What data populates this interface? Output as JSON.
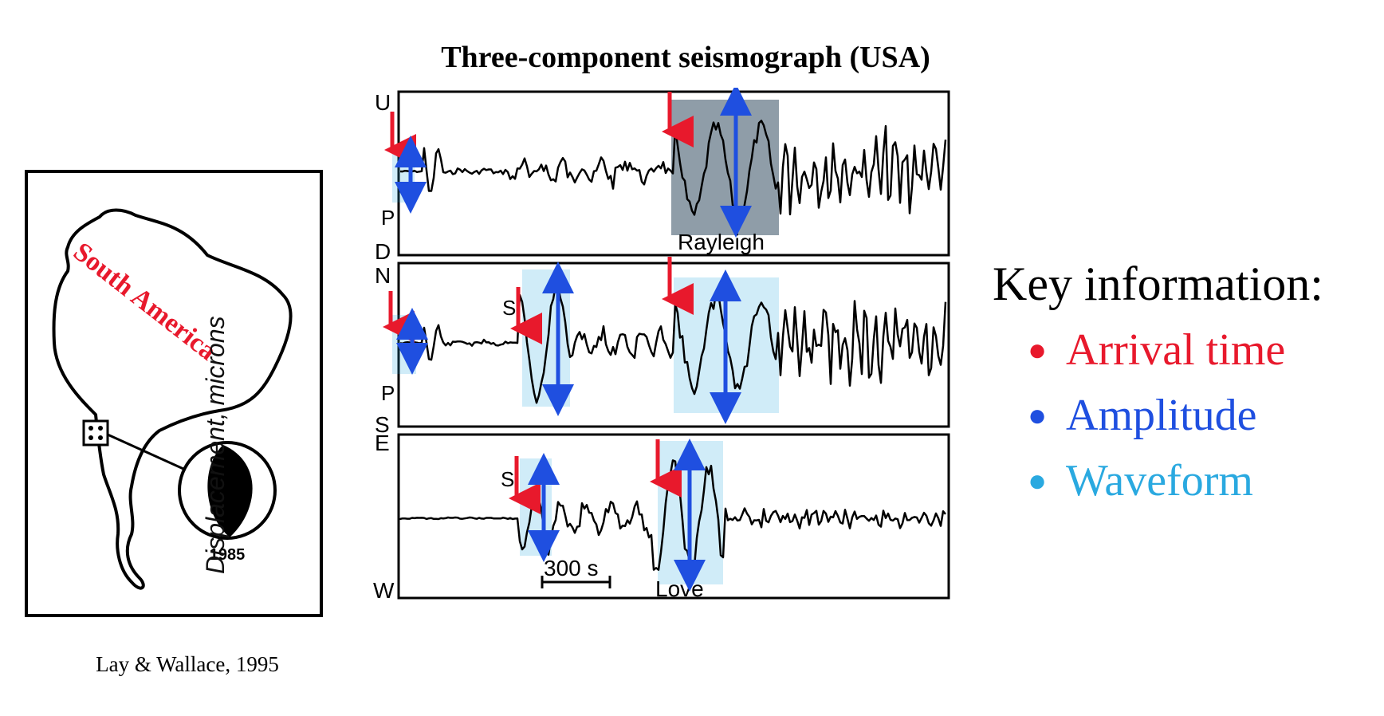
{
  "title": "Three-component seismograph (USA)",
  "credit": "Lay & Wallace, 1995",
  "map": {
    "region_label": "South America",
    "region_label_color": "#e8192c",
    "year_label": "1985"
  },
  "seismogram": {
    "y_axis_label": "Displacement, microns",
    "panels": [
      {
        "top_label": "U",
        "bottom_label": "D",
        "phase_labels": [
          "P",
          "Rayleigh"
        ]
      },
      {
        "top_label": "N",
        "bottom_label": "S",
        "phase_labels": [
          "P",
          "S"
        ]
      },
      {
        "top_label": "E",
        "bottom_label": "W",
        "phase_labels": [
          "S",
          "Love"
        ]
      }
    ],
    "scale_bar_label": "300 s"
  },
  "key": {
    "heading": "Key information:",
    "items": [
      {
        "label": "Arrival time",
        "color": "#e8192c",
        "icon": "red-arrow"
      },
      {
        "label": "Amplitude",
        "color": "#1f4fe0",
        "icon": "blue-double-arrow"
      },
      {
        "label": "Waveform",
        "color": "#2aa9e0",
        "icon": "light-blue-box"
      }
    ]
  }
}
